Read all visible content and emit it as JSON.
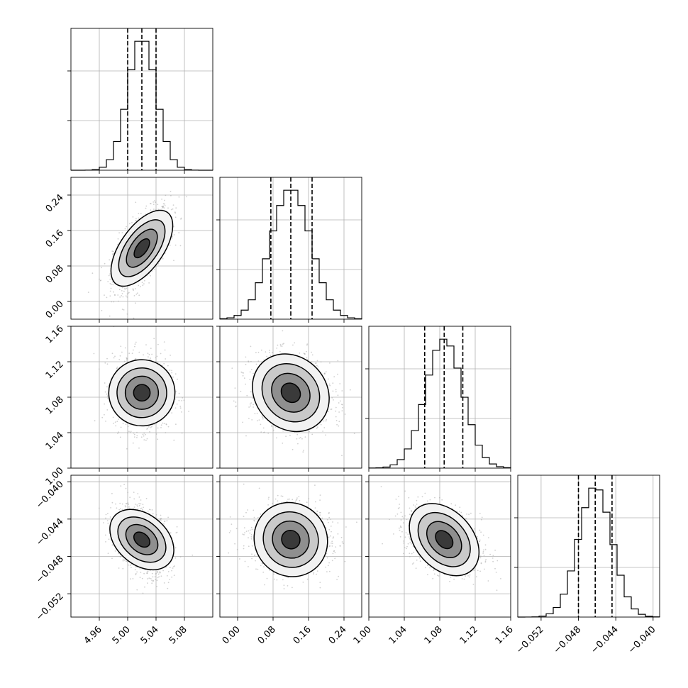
{
  "chart_data": {
    "type": "corner",
    "grid": true,
    "parameters": [
      {
        "index": 0,
        "mean": 5.02,
        "std": 0.02,
        "hist_range": [
          4.92,
          5.12
        ],
        "quantiles": [
          5.0,
          5.02,
          5.04
        ],
        "ticks": [
          4.96,
          5.0,
          5.04,
          5.08
        ],
        "tick_labels": [
          "4.96",
          "5.00",
          "5.04",
          "5.08"
        ]
      },
      {
        "index": 1,
        "mean": 0.12,
        "std": 0.045,
        "hist_range": [
          -0.04,
          0.28
        ],
        "quantiles": [
          0.075,
          0.12,
          0.168
        ],
        "ticks": [
          0.0,
          0.08,
          0.16,
          0.24
        ],
        "tick_labels": [
          "0.00",
          "0.08",
          "0.16",
          "0.24"
        ]
      },
      {
        "index": 2,
        "mean": 1.085,
        "std": 0.021,
        "hist_range": [
          1.0,
          1.16
        ],
        "quantiles": [
          1.063,
          1.085,
          1.106
        ],
        "ticks": [
          1.0,
          1.04,
          1.08,
          1.12,
          1.16
        ],
        "tick_labels": [
          "1.00",
          "1.04",
          "1.08",
          "1.12",
          "1.16"
        ]
      },
      {
        "index": 3,
        "mean": -0.0462,
        "std": 0.0018,
        "hist_range": [
          -0.0545,
          -0.0393
        ],
        "quantiles": [
          -0.048,
          -0.0462,
          -0.0444
        ],
        "ticks": [
          -0.052,
          -0.048,
          -0.044,
          -0.04
        ],
        "tick_labels": [
          "−0.052",
          "−0.048",
          "−0.044",
          "−0.040"
        ]
      }
    ],
    "correlations": [
      {
        "pair": [
          1,
          0
        ],
        "rho": 0.62
      },
      {
        "pair": [
          2,
          0
        ],
        "rho": 0.0
      },
      {
        "pair": [
          2,
          1
        ],
        "rho": -0.15
      },
      {
        "pair": [
          3,
          0
        ],
        "rho": -0.35
      },
      {
        "pair": [
          3,
          1
        ],
        "rho": -0.05
      },
      {
        "pair": [
          3,
          2
        ],
        "rho": -0.35
      }
    ],
    "contour_levels_sigma": [
      0.5,
      1.0,
      1.5,
      2.0
    ],
    "samples_per_panel": 1200,
    "colors": {
      "hist": "#000000",
      "points": "#aaaaaa",
      "grid": "#b0b0b0"
    }
  }
}
